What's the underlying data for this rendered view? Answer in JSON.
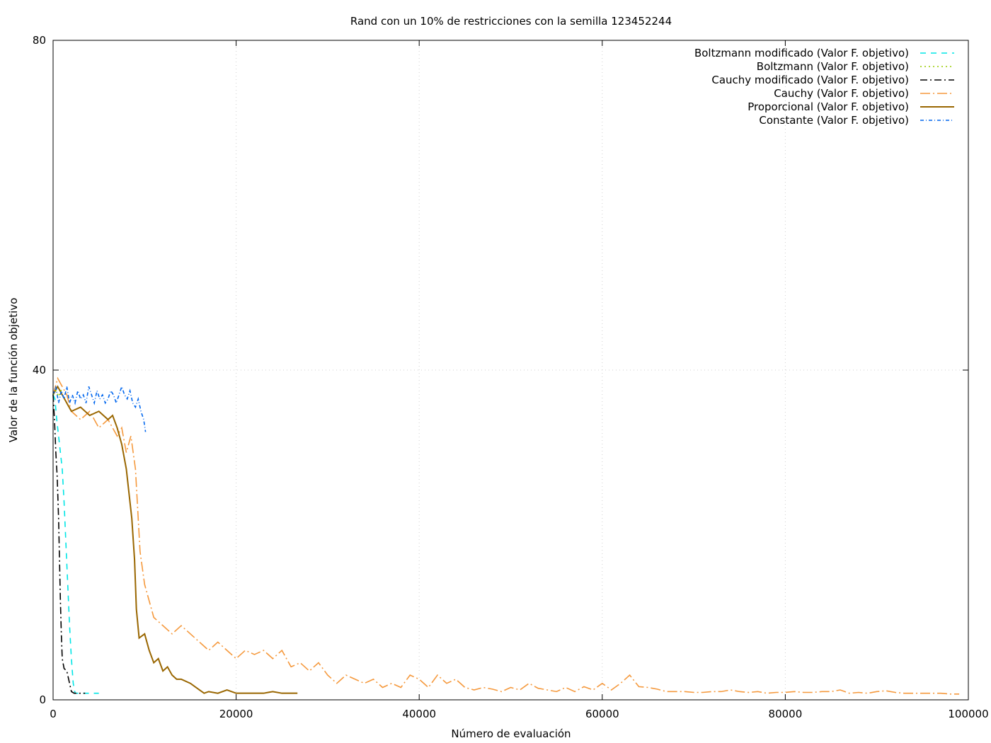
{
  "chart_data": {
    "type": "line",
    "title": "Rand con un 10% de restricciones con la semilla 123452244",
    "xlabel": "Número de evaluación",
    "ylabel": "Valor de la función objetivo",
    "xlim": [
      0,
      100000
    ],
    "ylim": [
      0,
      80
    ],
    "xticks": [
      0,
      20000,
      40000,
      60000,
      80000,
      100000
    ],
    "yticks": [
      0,
      40,
      80
    ],
    "grid": true,
    "legend_position": "top-right",
    "series": [
      {
        "name": "Boltzmann modificado (Valor F. objetivo)",
        "color": "#00e5e5",
        "dash": "dashed",
        "points": [
          [
            0,
            37
          ],
          [
            200,
            36.5
          ],
          [
            400,
            34
          ],
          [
            600,
            32
          ],
          [
            800,
            30
          ],
          [
            1000,
            28
          ],
          [
            1200,
            24
          ],
          [
            1400,
            19
          ],
          [
            1600,
            14
          ],
          [
            1800,
            9
          ],
          [
            2000,
            5
          ],
          [
            2200,
            2
          ],
          [
            2400,
            0.8
          ],
          [
            2800,
            0.8
          ],
          [
            3500,
            0.8
          ],
          [
            4500,
            0.8
          ],
          [
            5000,
            0.8
          ]
        ]
      },
      {
        "name": "Boltzmann (Valor F. objetivo)",
        "color": "#99cc00",
        "dash": "dotted",
        "points": [
          [
            0,
            37
          ],
          [
            300,
            37.5
          ],
          [
            600,
            36.8
          ],
          [
            900,
            37.6
          ]
        ]
      },
      {
        "name": "Cauchy modificado (Valor F. objetivo)",
        "color": "#000000",
        "dash": "dashdot",
        "points": [
          [
            0,
            37
          ],
          [
            150,
            34
          ],
          [
            300,
            30
          ],
          [
            450,
            27
          ],
          [
            600,
            22
          ],
          [
            700,
            17
          ],
          [
            800,
            12
          ],
          [
            900,
            8
          ],
          [
            1000,
            5
          ],
          [
            1200,
            3.8
          ],
          [
            1500,
            3.5
          ],
          [
            1800,
            2
          ],
          [
            2000,
            1
          ],
          [
            2300,
            0.8
          ],
          [
            3000,
            0.8
          ],
          [
            3500,
            0.8
          ]
        ]
      },
      {
        "name": "Cauchy (Valor F. objetivo)",
        "color": "#f5993d",
        "dash": "dashdotlong",
        "points": [
          [
            0,
            37
          ],
          [
            500,
            39
          ],
          [
            1000,
            38
          ],
          [
            1500,
            37
          ],
          [
            2000,
            35
          ],
          [
            3000,
            34
          ],
          [
            4000,
            35
          ],
          [
            5000,
            33
          ],
          [
            6000,
            34
          ],
          [
            7000,
            32
          ],
          [
            7500,
            33
          ],
          [
            8000,
            30
          ],
          [
            8500,
            32
          ],
          [
            9000,
            28
          ],
          [
            9500,
            18
          ],
          [
            10000,
            14
          ],
          [
            11000,
            10
          ],
          [
            12000,
            9
          ],
          [
            13000,
            8
          ],
          [
            14000,
            9
          ],
          [
            15000,
            8
          ],
          [
            16000,
            7
          ],
          [
            17000,
            6
          ],
          [
            18000,
            7
          ],
          [
            19000,
            6
          ],
          [
            20000,
            5
          ],
          [
            21000,
            6
          ],
          [
            22000,
            5.5
          ],
          [
            23000,
            6
          ],
          [
            24000,
            5
          ],
          [
            25000,
            6
          ],
          [
            26000,
            4
          ],
          [
            27000,
            4.5
          ],
          [
            28000,
            3.5
          ],
          [
            29000,
            4.5
          ],
          [
            30000,
            3
          ],
          [
            31000,
            2
          ],
          [
            32000,
            3
          ],
          [
            33000,
            2.5
          ],
          [
            34000,
            2
          ],
          [
            35000,
            2.5
          ],
          [
            36000,
            1.5
          ],
          [
            37000,
            2
          ],
          [
            38000,
            1.5
          ],
          [
            39000,
            3
          ],
          [
            40000,
            2.5
          ],
          [
            41000,
            1.5
          ],
          [
            42000,
            3
          ],
          [
            43000,
            2
          ],
          [
            44000,
            2.5
          ],
          [
            45000,
            1.5
          ],
          [
            46000,
            1.2
          ],
          [
            47000,
            1.5
          ],
          [
            48000,
            1.3
          ],
          [
            49000,
            1
          ],
          [
            50000,
            1.5
          ],
          [
            51000,
            1.2
          ],
          [
            52000,
            2
          ],
          [
            53000,
            1.4
          ],
          [
            54000,
            1.2
          ],
          [
            55000,
            1
          ],
          [
            56000,
            1.5
          ],
          [
            57000,
            1
          ],
          [
            58000,
            1.6
          ],
          [
            59000,
            1.2
          ],
          [
            60000,
            2
          ],
          [
            61000,
            1.2
          ],
          [
            62000,
            2
          ],
          [
            63000,
            3
          ],
          [
            64000,
            1.6
          ],
          [
            65000,
            1.5
          ],
          [
            66000,
            1.3
          ],
          [
            67000,
            1
          ],
          [
            68000,
            1
          ],
          [
            69000,
            1
          ],
          [
            70000,
            0.9
          ],
          [
            71000,
            0.9
          ],
          [
            72000,
            1
          ],
          [
            73000,
            1
          ],
          [
            74000,
            1.2
          ],
          [
            75000,
            1
          ],
          [
            76000,
            0.9
          ],
          [
            77000,
            1
          ],
          [
            78000,
            0.8
          ],
          [
            79000,
            0.9
          ],
          [
            80000,
            0.9
          ],
          [
            81000,
            1
          ],
          [
            82000,
            0.9
          ],
          [
            83000,
            0.9
          ],
          [
            84000,
            1
          ],
          [
            85000,
            1
          ],
          [
            86000,
            1.2
          ],
          [
            87000,
            0.8
          ],
          [
            88000,
            0.9
          ],
          [
            89000,
            0.8
          ],
          [
            90000,
            1
          ],
          [
            91000,
            1.1
          ],
          [
            92000,
            0.9
          ],
          [
            93000,
            0.8
          ],
          [
            94000,
            0.8
          ],
          [
            95000,
            0.8
          ],
          [
            96000,
            0.8
          ],
          [
            97000,
            0.8
          ],
          [
            98000,
            0.7
          ],
          [
            99000,
            0.7
          ]
        ]
      },
      {
        "name": "Proporcional (Valor F. objetivo)",
        "color": "#996600",
        "dash": "solid",
        "points": [
          [
            0,
            37
          ],
          [
            500,
            38
          ],
          [
            1000,
            37
          ],
          [
            1500,
            36
          ],
          [
            2000,
            35
          ],
          [
            3000,
            35.5
          ],
          [
            4000,
            34.5
          ],
          [
            5000,
            35
          ],
          [
            6000,
            34
          ],
          [
            6500,
            34.5
          ],
          [
            7000,
            33
          ],
          [
            7500,
            31
          ],
          [
            8000,
            28
          ],
          [
            8300,
            25
          ],
          [
            8600,
            22
          ],
          [
            8900,
            17
          ],
          [
            9100,
            11
          ],
          [
            9400,
            7.5
          ],
          [
            10000,
            8
          ],
          [
            10500,
            6
          ],
          [
            11000,
            4.5
          ],
          [
            11500,
            5
          ],
          [
            12000,
            3.5
          ],
          [
            12500,
            4
          ],
          [
            13000,
            3
          ],
          [
            13500,
            2.5
          ],
          [
            14000,
            2.5
          ],
          [
            15000,
            2
          ],
          [
            16000,
            1.2
          ],
          [
            16500,
            0.8
          ],
          [
            17000,
            1
          ],
          [
            18000,
            0.8
          ],
          [
            19000,
            1.2
          ],
          [
            20000,
            0.8
          ],
          [
            21000,
            0.8
          ],
          [
            22000,
            0.8
          ],
          [
            23000,
            0.8
          ],
          [
            24000,
            1
          ],
          [
            25000,
            0.8
          ],
          [
            26000,
            0.8
          ],
          [
            26700,
            0.8
          ]
        ]
      },
      {
        "name": "Constante (Valor F. objetivo)",
        "color": "#0066ee",
        "dash": "dashdotsmall",
        "points": [
          [
            0,
            37
          ],
          [
            300,
            38
          ],
          [
            600,
            36
          ],
          [
            900,
            37.5
          ],
          [
            1200,
            36.5
          ],
          [
            1500,
            38
          ],
          [
            1800,
            36
          ],
          [
            2100,
            37
          ],
          [
            2400,
            36
          ],
          [
            2700,
            37.5
          ],
          [
            3000,
            36.5
          ],
          [
            3300,
            37
          ],
          [
            3600,
            36
          ],
          [
            3900,
            38
          ],
          [
            4200,
            37
          ],
          [
            4500,
            36
          ],
          [
            4800,
            37.5
          ],
          [
            5100,
            36.5
          ],
          [
            5400,
            37
          ],
          [
            5700,
            36
          ],
          [
            6000,
            36.5
          ],
          [
            6300,
            37.5
          ],
          [
            6600,
            37
          ],
          [
            6900,
            36
          ],
          [
            7200,
            37
          ],
          [
            7500,
            38
          ],
          [
            7800,
            37
          ],
          [
            8100,
            36.5
          ],
          [
            8400,
            37.5
          ],
          [
            8700,
            36
          ],
          [
            9000,
            35.5
          ],
          [
            9300,
            36.5
          ],
          [
            9600,
            35
          ],
          [
            9900,
            34
          ],
          [
            10100,
            32.5
          ]
        ]
      }
    ]
  }
}
